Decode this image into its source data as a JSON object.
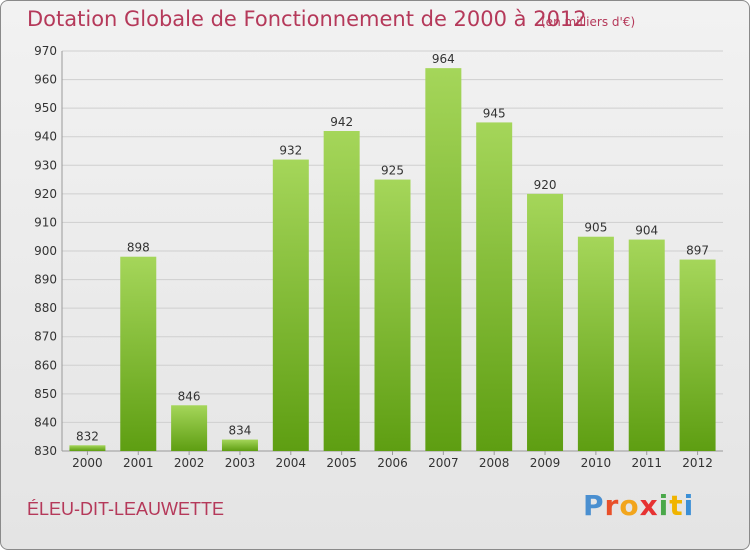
{
  "header": {
    "title": "Dotation Globale de Fonctionnement de 2000 à 2012",
    "subtitle": "(en milliers d'€)"
  },
  "footer": {
    "commune": "ÉLEU-DIT-LEAUWETTE",
    "logo_letters": [
      "P",
      "r",
      "o",
      "x",
      "i",
      "t",
      "i"
    ],
    "logo_colors": [
      "#4a8fd0",
      "#e8502a",
      "#f2a51c",
      "#e63232",
      "#4aa84a",
      "#f0b400",
      "#3b8fd6"
    ]
  },
  "colors": {
    "bar_top": "#a5d65a",
    "bar_bottom": "#5e9e12",
    "grid": "#cfcfcf",
    "accent": "#b5395a"
  },
  "chart_data": {
    "type": "bar",
    "title": "Dotation Globale de Fonctionnement de 2000 à 2012",
    "subtitle": "(en milliers d'€)",
    "categories": [
      "2000",
      "2001",
      "2002",
      "2003",
      "2004",
      "2005",
      "2006",
      "2007",
      "2008",
      "2009",
      "2010",
      "2011",
      "2012"
    ],
    "values": [
      832,
      898,
      846,
      834,
      932,
      942,
      925,
      964,
      945,
      920,
      905,
      904,
      897
    ],
    "ylim": [
      830,
      970
    ],
    "yticks": [
      830,
      840,
      850,
      860,
      870,
      880,
      890,
      900,
      910,
      920,
      930,
      940,
      950,
      960,
      970
    ],
    "grid": true,
    "data_labels": true
  }
}
